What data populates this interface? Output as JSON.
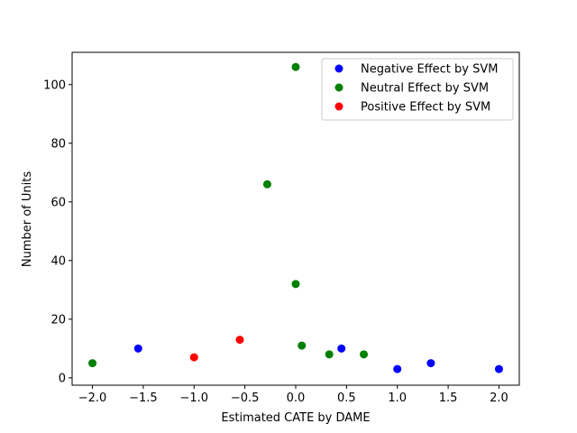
{
  "chart_data": {
    "type": "scatter",
    "title": "",
    "xlabel": "Estimated CATE by DAME",
    "ylabel": "Number of Units",
    "xlim": [
      -2.2,
      2.2
    ],
    "ylim": [
      -2.5,
      111
    ],
    "xticks": [
      -2.0,
      -1.5,
      -1.0,
      -0.5,
      0.0,
      0.5,
      1.0,
      1.5,
      2.0
    ],
    "xtick_labels": [
      "−2.0",
      "−1.5",
      "−1.0",
      "−0.5",
      "0.0",
      "0.5",
      "1.0",
      "1.5",
      "2.0"
    ],
    "yticks": [
      0,
      20,
      40,
      60,
      80,
      100
    ],
    "ytick_labels": [
      "0",
      "20",
      "40",
      "60",
      "80",
      "100"
    ],
    "grid": false,
    "legend_position": "top-right",
    "series": [
      {
        "name": "Negative Effect by SVM",
        "color": "#0000ff",
        "points": [
          [
            -1.55,
            10
          ],
          [
            0.45,
            10
          ],
          [
            1.0,
            3
          ],
          [
            1.33,
            5
          ],
          [
            2.0,
            3
          ]
        ]
      },
      {
        "name": "Neutral Effect by SVM",
        "color": "#008000",
        "points": [
          [
            -2.0,
            5
          ],
          [
            -0.28,
            66
          ],
          [
            0.0,
            106
          ],
          [
            0.0,
            32
          ],
          [
            0.06,
            11
          ],
          [
            0.33,
            8
          ],
          [
            0.67,
            8
          ]
        ]
      },
      {
        "name": "Positive Effect by SVM",
        "color": "#ff0000",
        "points": [
          [
            -1.0,
            7
          ],
          [
            -0.55,
            13
          ]
        ]
      }
    ]
  }
}
